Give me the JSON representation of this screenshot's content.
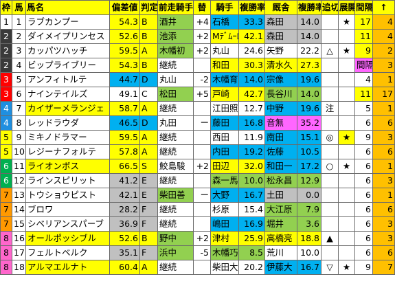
{
  "colors": {
    "header": "#ffff00",
    "yellow": "#ffff00",
    "cyan": "#00b0f0",
    "green": "#92d050",
    "pink": "#ff66ff",
    "grey": "#c0c0c0",
    "orange": "#ffc000",
    "waku1": "#ffffff",
    "waku2": "#3a3a3a",
    "waku3": "#ff0000",
    "waku4": "#1f8fe0",
    "waku5": "#ffff00",
    "waku6": "#00b050",
    "waku7": "#ff9900",
    "waku8": "#ff66cc"
  },
  "headers": {
    "waku": "枠",
    "uma": "馬",
    "name": "馬名",
    "dev": "偏差値",
    "grade": "判定",
    "prevJockey": "前走騎手",
    "swap": "替",
    "jockey": "騎手",
    "jockeyRate": "複勝率",
    "trainer": "厩舎",
    "trainerRate": "複勝率",
    "oikiri": "追切",
    "tenkai": "展開",
    "interval": "間隔",
    "arrow": "↑"
  },
  "rows": [
    {
      "waku": "1",
      "uma": "1",
      "name": "ラブカンプー",
      "dev": "54.3",
      "grade": "B",
      "prev": "酒井",
      "swap": "+4",
      "jockey": "石橋",
      "jrate": "33.3",
      "trainer": "森田",
      "trate": "14.0",
      "oikiri": "",
      "tenkai": "★",
      "interval": "17",
      "arrow": "4"
    },
    {
      "waku": "2",
      "uma": "2",
      "name": "ダイメイプリンセス",
      "dev": "52.6",
      "grade": "B",
      "prev": "池添",
      "swap": "+2",
      "jockey": "Mﾃﾞﾑｰﾛ",
      "jrate": "42.1",
      "trainer": "森田",
      "trate": "14.0",
      "oikiri": "",
      "tenkai": "",
      "interval": "11",
      "arrow": "4"
    },
    {
      "waku": "2",
      "uma": "3",
      "name": "カッパツハッチ",
      "dev": "59.5",
      "grade": "A",
      "prev": "木幡初",
      "swap": "+2",
      "jockey": "丸山",
      "jrate": "24.6",
      "trainer": "矢野",
      "trate": "22.2",
      "oikiri": "△",
      "tenkai": "★",
      "interval": "9",
      "arrow": "2"
    },
    {
      "waku": "2",
      "uma": "4",
      "name": "ビップライブリー",
      "dev": "54.3",
      "grade": "B",
      "prev": "継続",
      "swap": "",
      "jockey": "和田",
      "jrate": "30.3",
      "trainer": "清水久",
      "trate": "27.3",
      "oikiri": "",
      "tenkai": "",
      "interval": "間隔",
      "arrow": "3"
    },
    {
      "waku": "3",
      "uma": "5",
      "name": "アンフィトルテ",
      "dev": "44.7",
      "grade": "D",
      "prev": "丸山",
      "swap": "-2",
      "jockey": "木幡育",
      "jrate": "14.0",
      "trainer": "宗像",
      "trate": "19.6",
      "oikiri": "",
      "tenkai": "",
      "interval": "4",
      "arrow": "1"
    },
    {
      "waku": "3",
      "uma": "6",
      "name": "ナインテイルズ",
      "dev": "49.1",
      "grade": "C",
      "prev": "松田",
      "swap": "+5",
      "jockey": "戸崎",
      "jrate": "42.7",
      "trainer": "長谷川",
      "trate": "14.0",
      "oikiri": "",
      "tenkai": "",
      "interval": "11",
      "arrow": "17"
    },
    {
      "waku": "4",
      "uma": "7",
      "name": "カイザーメランジェ",
      "dev": "58.7",
      "grade": "A",
      "prev": "継続",
      "swap": "",
      "jockey": "江田照",
      "jrate": "12.7",
      "trainer": "中野",
      "trate": "19.6",
      "oikiri": "注",
      "tenkai": "",
      "interval": "5",
      "arrow": "1"
    },
    {
      "waku": "4",
      "uma": "8",
      "name": "レッドラウダ",
      "dev": "46.5",
      "grade": "D",
      "prev": "丸田",
      "swap": "ー",
      "jockey": "藤田",
      "jrate": "16.8",
      "trainer": "音無",
      "trate": "35.2",
      "oikiri": "",
      "tenkai": "",
      "interval": "6",
      "arrow": "6"
    },
    {
      "waku": "5",
      "uma": "9",
      "name": "ミキノドラマー",
      "dev": "59.5",
      "grade": "A",
      "prev": "継続",
      "swap": "",
      "jockey": "西田",
      "jrate": "11.9",
      "trainer": "南田",
      "trate": "15.1",
      "oikiri": "◎",
      "tenkai": "★",
      "interval": "9",
      "arrow": "3"
    },
    {
      "waku": "5",
      "uma": "10",
      "name": "レジーナフォルテ",
      "dev": "57.8",
      "grade": "A",
      "prev": "継続",
      "swap": "",
      "jockey": "内田",
      "jrate": "19.2",
      "trainer": "佐藤",
      "trate": "10.5",
      "oikiri": "",
      "tenkai": "",
      "interval": "6",
      "arrow": "6"
    },
    {
      "waku": "6",
      "uma": "11",
      "name": "ライオンボス",
      "dev": "66.5",
      "grade": "S",
      "prev": "鮫島駿",
      "swap": "+2",
      "jockey": "田辺",
      "jrate": "32.0",
      "trainer": "和田一",
      "trate": "17.2",
      "oikiri": "○",
      "tenkai": "★",
      "interval": "6",
      "arrow": "1"
    },
    {
      "waku": "6",
      "uma": "12",
      "name": "ラインスピリット",
      "dev": "41.2",
      "grade": "E",
      "prev": "継続",
      "swap": "",
      "jockey": "森一馬",
      "jrate": "10.0",
      "trainer": "松永昌",
      "trate": "12.9",
      "oikiri": "",
      "tenkai": "",
      "interval": "6",
      "arrow": "3"
    },
    {
      "waku": "7",
      "uma": "13",
      "name": "トウショウピスト",
      "dev": "42.1",
      "grade": "E",
      "prev": "柴田善",
      "swap": "ー",
      "jockey": "大野",
      "jrate": "16.7",
      "trainer": "土田",
      "trate": "0.0",
      "oikiri": "",
      "tenkai": "",
      "interval": "6",
      "arrow": "1"
    },
    {
      "waku": "7",
      "uma": "14",
      "name": "ブロワ",
      "dev": "28.2",
      "grade": "F",
      "prev": "継続",
      "swap": "",
      "jockey": "杉原",
      "jrate": "15.4",
      "trainer": "大江原",
      "trate": "7.9",
      "oikiri": "",
      "tenkai": "",
      "interval": "6",
      "arrow": "6"
    },
    {
      "waku": "7",
      "uma": "15",
      "name": "シベリアンスパーブ",
      "dev": "36.9",
      "grade": "F",
      "prev": "継続",
      "swap": "",
      "jockey": "嶋田",
      "jrate": "16.9",
      "trainer": "堀井",
      "trate": "3.6",
      "oikiri": "",
      "tenkai": "",
      "interval": "6",
      "arrow": "3"
    },
    {
      "waku": "8",
      "uma": "16",
      "name": "オールポッシブル",
      "dev": "52.6",
      "grade": "B",
      "prev": "野中",
      "swap": "+2",
      "jockey": "津村",
      "jrate": "25.9",
      "trainer": "高橋亮",
      "trate": "18.8",
      "oikiri": "▲",
      "tenkai": "",
      "interval": "6",
      "arrow": "3"
    },
    {
      "waku": "8",
      "uma": "17",
      "name": "フェルトベルク",
      "dev": "35.1",
      "grade": "F",
      "prev": "浜中",
      "swap": "-5",
      "jockey": "木幡巧",
      "jrate": "8.5",
      "trainer": "荒川",
      "trate": "10.0",
      "oikiri": "",
      "tenkai": "",
      "interval": "6",
      "arrow": "6"
    },
    {
      "waku": "8",
      "uma": "18",
      "name": "アルマエルナト",
      "dev": "60.4",
      "grade": "A",
      "prev": "継続",
      "swap": "",
      "jockey": "柴田大",
      "jrate": "20.2",
      "trainer": "伊藤大",
      "trate": "16.7",
      "oikiri": "▽",
      "tenkai": "★",
      "interval": "9",
      "arrow": "7"
    }
  ]
}
